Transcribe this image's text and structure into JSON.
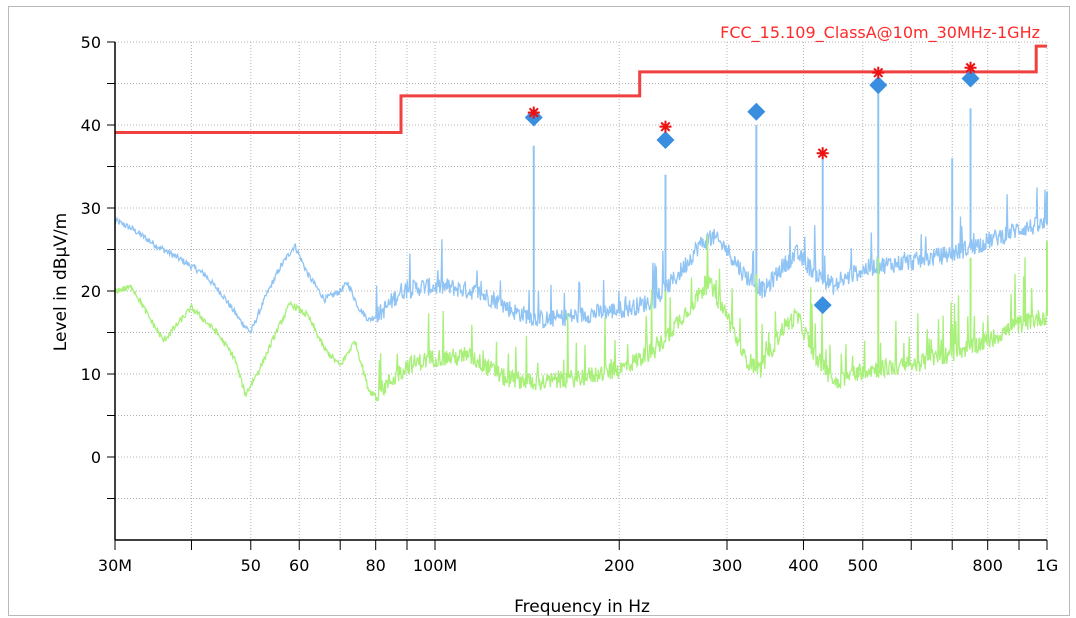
{
  "chart_data": {
    "type": "line",
    "xlabel": "Frequency in Hz",
    "ylabel": "Level in dBµV/m",
    "x_scale": "log",
    "xlim_hz": [
      30000000,
      1000000000
    ],
    "ylim": [
      -10,
      50
    ],
    "x_ticks": [
      {
        "hz": 30000000,
        "label": "30M"
      },
      {
        "hz": 50000000,
        "label": "50"
      },
      {
        "hz": 60000000,
        "label": "60"
      },
      {
        "hz": 80000000,
        "label": "80"
      },
      {
        "hz": 100000000,
        "label": "100M"
      },
      {
        "hz": 200000000,
        "label": "200"
      },
      {
        "hz": 300000000,
        "label": "300"
      },
      {
        "hz": 400000000,
        "label": "400"
      },
      {
        "hz": 500000000,
        "label": "500"
      },
      {
        "hz": 800000000,
        "label": "800"
      },
      {
        "hz": 1000000000,
        "label": "1G"
      }
    ],
    "x_minor_ticks_hz": [
      40000000,
      70000000,
      90000000,
      600000000,
      700000000,
      900000000
    ],
    "y_ticks": [
      {
        "value": 0,
        "label": "0"
      },
      {
        "value": 10,
        "label": "10"
      },
      {
        "value": 20,
        "label": "20"
      },
      {
        "value": 30,
        "label": "30"
      },
      {
        "value": 40,
        "label": "40"
      },
      {
        "value": 50,
        "label": "50"
      }
    ],
    "y_minor_ticks": [
      -5,
      5,
      15,
      25,
      35,
      45
    ],
    "grid": true,
    "limit_line": {
      "label": "FCC_15.109_ClassA@10m_30MHz-1GHz",
      "color": "#f04040",
      "steps": [
        {
          "from_hz": 30000000,
          "to_hz": 88000000,
          "level": 39.1
        },
        {
          "from_hz": 88000000,
          "to_hz": 216000000,
          "level": 43.5
        },
        {
          "from_hz": 216000000,
          "to_hz": 960000000,
          "level": 46.4
        },
        {
          "from_hz": 960000000,
          "to_hz": 1000000000,
          "level": 49.5
        }
      ]
    },
    "series": [
      {
        "key": "peak",
        "color": "#90c4f4",
        "baseline": [
          [
            30,
            28.5
          ],
          [
            32,
            27.5
          ],
          [
            35,
            25.5
          ],
          [
            38,
            24.0
          ],
          [
            42,
            22.0
          ],
          [
            45,
            19.5
          ],
          [
            48,
            16.5
          ],
          [
            50,
            15.0
          ],
          [
            53,
            19.5
          ],
          [
            56,
            23.0
          ],
          [
            59,
            25.5
          ],
          [
            62,
            22.0
          ],
          [
            66,
            19.0
          ],
          [
            70,
            20.0
          ],
          [
            72,
            21.0
          ],
          [
            75,
            18.0
          ],
          [
            78,
            16.5
          ],
          [
            82,
            17.5
          ],
          [
            88,
            20.0
          ],
          [
            95,
            20.5
          ],
          [
            105,
            20.5
          ],
          [
            115,
            20.0
          ],
          [
            125,
            19.0
          ],
          [
            135,
            17.5
          ],
          [
            150,
            16.5
          ],
          [
            170,
            17.0
          ],
          [
            190,
            17.5
          ],
          [
            210,
            18.0
          ],
          [
            230,
            19.0
          ],
          [
            250,
            22.0
          ],
          [
            270,
            25.5
          ],
          [
            285,
            26.5
          ],
          [
            300,
            25.0
          ],
          [
            320,
            22.0
          ],
          [
            345,
            20.0
          ],
          [
            370,
            23.0
          ],
          [
            390,
            24.5
          ],
          [
            420,
            22.0
          ],
          [
            450,
            20.5
          ],
          [
            480,
            22.0
          ],
          [
            520,
            23.0
          ],
          [
            600,
            23.5
          ],
          [
            700,
            24.5
          ],
          [
            800,
            26.0
          ],
          [
            900,
            27.5
          ],
          [
            1000,
            28.0
          ]
        ],
        "spikes": [
          [
            145,
            37.5
          ],
          [
            238,
            34.0
          ],
          [
            335,
            40.0
          ],
          [
            430,
            36.0
          ],
          [
            530,
            44.5
          ],
          [
            700,
            36.0
          ],
          [
            750,
            42.0
          ],
          [
            1000,
            32.0
          ]
        ]
      },
      {
        "key": "average",
        "color": "#a8f07a",
        "baseline": [
          [
            30,
            20.0
          ],
          [
            32,
            20.5
          ],
          [
            34,
            17.0
          ],
          [
            36,
            14.0
          ],
          [
            40,
            18.0
          ],
          [
            44,
            15.0
          ],
          [
            47,
            12.0
          ],
          [
            49,
            7.5
          ],
          [
            52,
            11.0
          ],
          [
            55,
            15.0
          ],
          [
            58,
            18.5
          ],
          [
            62,
            17.0
          ],
          [
            66,
            13.0
          ],
          [
            70,
            11.0
          ],
          [
            74,
            14.0
          ],
          [
            78,
            8.0
          ],
          [
            80,
            7.5
          ],
          [
            90,
            11.0
          ],
          [
            100,
            12.0
          ],
          [
            115,
            12.0
          ],
          [
            130,
            9.5
          ],
          [
            150,
            9.0
          ],
          [
            170,
            9.5
          ],
          [
            200,
            10.5
          ],
          [
            230,
            13.0
          ],
          [
            260,
            18.0
          ],
          [
            280,
            21.0
          ],
          [
            300,
            17.0
          ],
          [
            320,
            12.0
          ],
          [
            340,
            10.5
          ],
          [
            370,
            15.5
          ],
          [
            390,
            17.0
          ],
          [
            420,
            12.0
          ],
          [
            450,
            9.0
          ],
          [
            500,
            10.5
          ],
          [
            600,
            11.0
          ],
          [
            700,
            12.5
          ],
          [
            800,
            14.0
          ],
          [
            900,
            16.0
          ],
          [
            1000,
            17.0
          ]
        ],
        "spikes": [
          [
            238,
            20.0
          ],
          [
            335,
            22.0
          ],
          [
            530,
            24.0
          ],
          [
            750,
            24.0
          ],
          [
            1000,
            26.0
          ]
        ]
      }
    ],
    "markers": [
      {
        "type": "quasi-peak",
        "symbol": "diamond",
        "color": "#3a8ee0",
        "points": [
          [
            145,
            40.9
          ],
          [
            238,
            38.2
          ],
          [
            335,
            41.6
          ],
          [
            430,
            18.3
          ],
          [
            530,
            44.8
          ],
          [
            750,
            45.6
          ]
        ]
      },
      {
        "type": "peak",
        "symbol": "asterisk",
        "color": "#ee1111",
        "points": [
          [
            145,
            41.5
          ],
          [
            238,
            39.8
          ],
          [
            430,
            36.6
          ],
          [
            530,
            46.3
          ],
          [
            750,
            46.9
          ]
        ]
      }
    ]
  }
}
